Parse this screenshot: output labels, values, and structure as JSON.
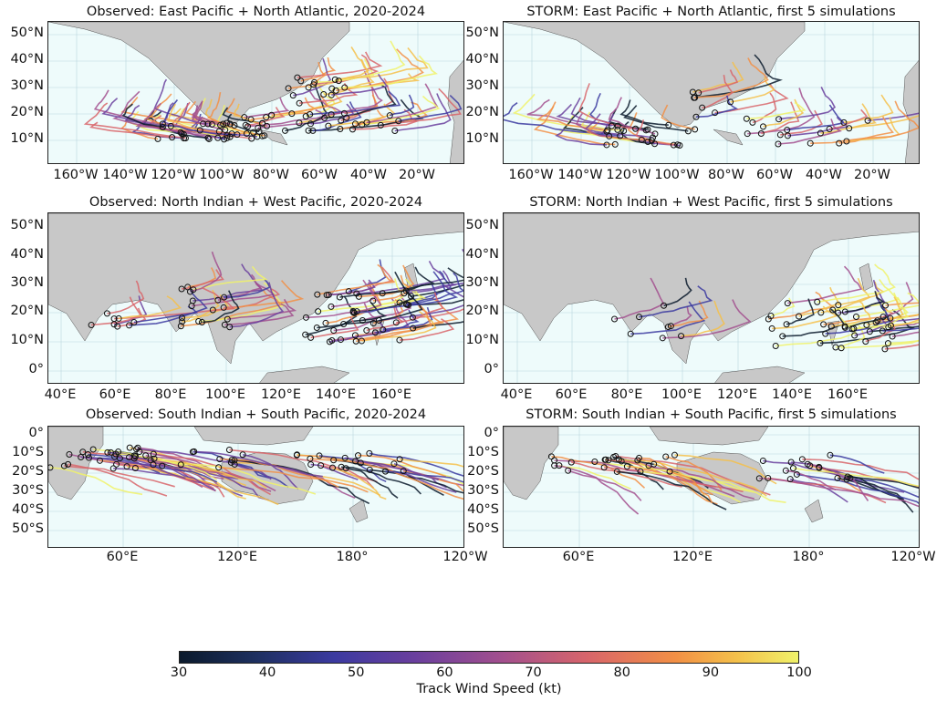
{
  "panels": [
    {
      "title": "Observed: East Pacific + North Atlantic, 2020-2024",
      "yticks": [
        "50°N",
        "40°N",
        "30°N",
        "20°N",
        "10°N"
      ],
      "xticks": [
        "160°W",
        "140°W",
        "120°W",
        "100°W",
        "80°W",
        "60°W",
        "40°W",
        "20°W"
      ]
    },
    {
      "title": "STORM: East Pacific + North Atlantic, first 5 simulations",
      "yticks": [
        "50°N",
        "40°N",
        "30°N",
        "20°N",
        "10°N"
      ],
      "xticks": [
        "160°W",
        "140°W",
        "120°W",
        "100°W",
        "80°W",
        "60°W",
        "40°W",
        "20°W"
      ]
    },
    {
      "title": "Observed: North Indian + West Pacific, 2020-2024",
      "yticks": [
        "50°N",
        "40°N",
        "30°N",
        "20°N",
        "10°N",
        "0°"
      ],
      "xticks": [
        "40°E",
        "60°E",
        "80°E",
        "100°E",
        "120°E",
        "140°E",
        "160°E"
      ]
    },
    {
      "title": "STORM: North Indian + West Pacific, first 5 simulations",
      "yticks": [
        "50°N",
        "40°N",
        "30°N",
        "20°N",
        "10°N",
        "0°"
      ],
      "xticks": [
        "40°E",
        "60°E",
        "80°E",
        "100°E",
        "120°E",
        "140°E",
        "160°E"
      ]
    },
    {
      "title": "Observed: South Indian + South Pacific, 2020-2024",
      "yticks": [
        "0°",
        "10°S",
        "20°S",
        "30°S",
        "40°S",
        "50°S"
      ],
      "xticks": [
        "60°E",
        "120°E",
        "180°",
        "120°W"
      ]
    },
    {
      "title": "STORM: South Indian + South Pacific, first 5 simulations",
      "yticks": [
        "0°",
        "10°S",
        "20°S",
        "30°S",
        "40°S",
        "50°S"
      ],
      "xticks": [
        "60°E",
        "120°E",
        "180°",
        "120°W"
      ]
    }
  ],
  "colorbar": {
    "label": "Track Wind Speed (kt)",
    "ticks": [
      "30",
      "40",
      "50",
      "60",
      "70",
      "80",
      "90",
      "100"
    ],
    "colors": [
      "#0b1a2c",
      "#3b3aa0",
      "#6a3f9e",
      "#a24f8e",
      "#d8656a",
      "#f28f45",
      "#f4c04a",
      "#f0f26a"
    ]
  },
  "land_color": "#c8c8c8",
  "ocean_color": "#eefbfb"
}
